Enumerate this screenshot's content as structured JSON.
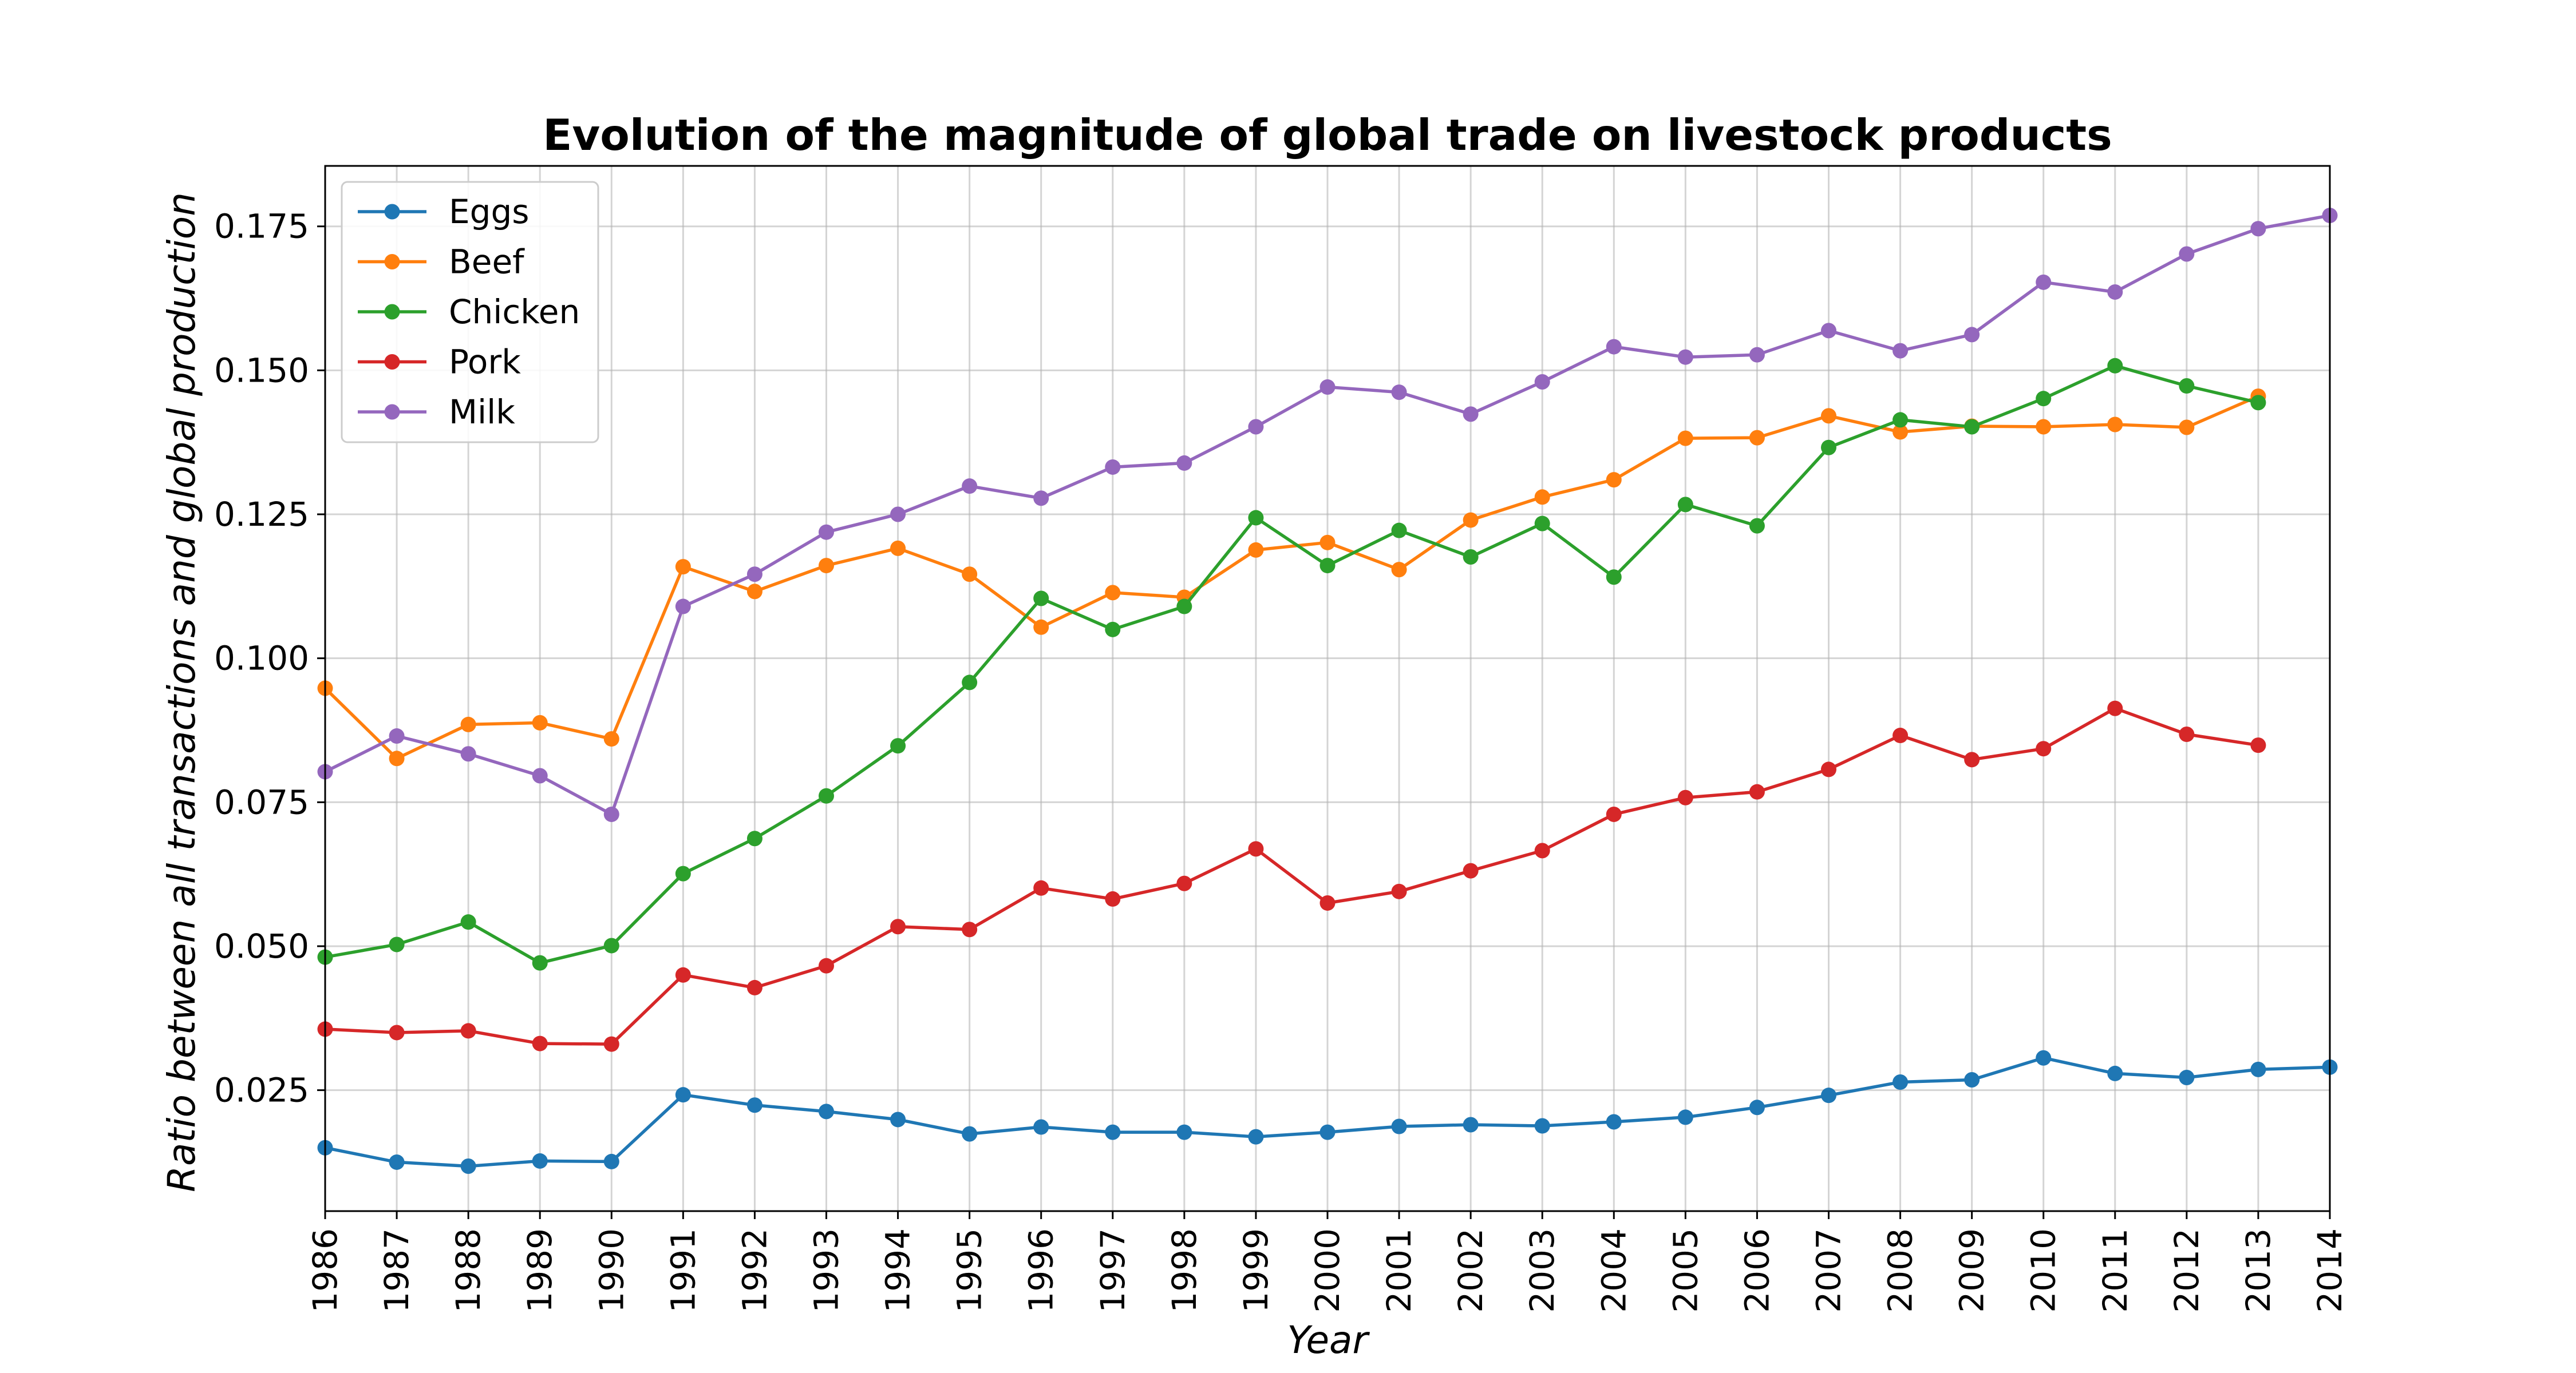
{
  "chart_data": {
    "type": "line",
    "title": "Evolution of the magnitude of global trade on livestock products",
    "xlabel": "Year",
    "ylabel": "Ratio between all transactions and global production",
    "xlim": [
      1986,
      2014
    ],
    "ylim": [
      0.004,
      0.1855
    ],
    "x_ticks": [
      "1986",
      "1987",
      "1988",
      "1989",
      "1990",
      "1991",
      "1992",
      "1993",
      "1994",
      "1995",
      "1996",
      "1997",
      "1998",
      "1999",
      "2000",
      "2001",
      "2002",
      "2003",
      "2004",
      "2005",
      "2006",
      "2007",
      "2008",
      "2009",
      "2010",
      "2011",
      "2012",
      "2013",
      "2014"
    ],
    "y_ticks": [
      "0.025",
      "0.050",
      "0.075",
      "0.100",
      "0.125",
      "0.150",
      "0.175"
    ],
    "y_tick_values": [
      0.025,
      0.05,
      0.075,
      0.1,
      0.125,
      0.15,
      0.175
    ],
    "grid": true,
    "legend_position": "upper-left",
    "series": [
      {
        "name": "Eggs",
        "color": "#1f77b4",
        "x": [
          1986,
          1987,
          1988,
          1989,
          1990,
          1991,
          1992,
          1993,
          1994,
          1995,
          1996,
          1997,
          1998,
          1999,
          2000,
          2001,
          2002,
          2003,
          2004,
          2005,
          2006,
          2007,
          2008,
          2009,
          2010,
          2011,
          2012,
          2013,
          2014
        ],
        "values": [
          0.015,
          0.0125,
          0.0118,
          0.0127,
          0.0126,
          0.0242,
          0.0224,
          0.0213,
          0.0199,
          0.0174,
          0.0186,
          0.0177,
          0.0177,
          0.0169,
          0.0177,
          0.0187,
          0.019,
          0.0188,
          0.0195,
          0.0203,
          0.022,
          0.0241,
          0.0264,
          0.0268,
          0.0306,
          0.0279,
          0.0272,
          0.0286,
          0.029
        ]
      },
      {
        "name": "Beef",
        "color": "#ff7f0e",
        "x": [
          1986,
          1987,
          1988,
          1989,
          1990,
          1991,
          1992,
          1993,
          1994,
          1995,
          1996,
          1997,
          1998,
          1999,
          2000,
          2001,
          2002,
          2003,
          2004,
          2005,
          2006,
          2007,
          2008,
          2009,
          2010,
          2011,
          2012,
          2013
        ],
        "values": [
          0.0948,
          0.0826,
          0.0885,
          0.0888,
          0.086,
          0.1159,
          0.1116,
          0.1161,
          0.1191,
          0.1146,
          0.1054,
          0.1114,
          0.1106,
          0.1188,
          0.1201,
          0.1154,
          0.124,
          0.128,
          0.131,
          0.1382,
          0.1383,
          0.1421,
          0.1393,
          0.1403,
          0.1402,
          0.1406,
          0.1401,
          0.1455
        ]
      },
      {
        "name": "Chicken",
        "color": "#2ca02c",
        "x": [
          1986,
          1987,
          1988,
          1989,
          1990,
          1991,
          1992,
          1993,
          1994,
          1995,
          1996,
          1997,
          1998,
          1999,
          2000,
          2001,
          2002,
          2003,
          2004,
          2005,
          2006,
          2007,
          2008,
          2009,
          2010,
          2011,
          2012,
          2013
        ],
        "values": [
          0.0481,
          0.0503,
          0.0542,
          0.0471,
          0.0501,
          0.0626,
          0.0687,
          0.0761,
          0.0848,
          0.0958,
          0.1104,
          0.105,
          0.109,
          0.1244,
          0.1161,
          0.1222,
          0.1176,
          0.1234,
          0.1141,
          0.1267,
          0.123,
          0.1366,
          0.1414,
          0.1402,
          0.1451,
          0.1508,
          0.1473,
          0.1444
        ]
      },
      {
        "name": "Pork",
        "color": "#d62728",
        "x": [
          1986,
          1987,
          1988,
          1989,
          1990,
          1991,
          1992,
          1993,
          1994,
          1995,
          1996,
          1997,
          1998,
          1999,
          2000,
          2001,
          2002,
          2003,
          2004,
          2005,
          2006,
          2007,
          2008,
          2009,
          2010,
          2011,
          2012,
          2013
        ],
        "values": [
          0.0356,
          0.035,
          0.0353,
          0.0331,
          0.033,
          0.045,
          0.0428,
          0.0466,
          0.0534,
          0.0529,
          0.0601,
          0.0582,
          0.0609,
          0.0669,
          0.0575,
          0.0595,
          0.0631,
          0.0666,
          0.0729,
          0.0758,
          0.0768,
          0.0807,
          0.0866,
          0.0824,
          0.0843,
          0.0913,
          0.0868,
          0.0849
        ]
      },
      {
        "name": "Milk",
        "color": "#9467bd",
        "x": [
          1986,
          1987,
          1988,
          1989,
          1990,
          1991,
          1992,
          1993,
          1994,
          1995,
          1996,
          1997,
          1998,
          1999,
          2000,
          2001,
          2002,
          2003,
          2004,
          2005,
          2006,
          2007,
          2008,
          2009,
          2010,
          2011,
          2012,
          2013,
          2014
        ],
        "values": [
          0.0803,
          0.0865,
          0.0834,
          0.0796,
          0.0729,
          0.109,
          0.1146,
          0.1219,
          0.125,
          0.1299,
          0.1278,
          0.1332,
          0.1339,
          0.1402,
          0.1471,
          0.1462,
          0.1424,
          0.148,
          0.1541,
          0.1523,
          0.1527,
          0.1569,
          0.1534,
          0.1562,
          0.1653,
          0.1636,
          0.1702,
          0.1746,
          0.1769
        ]
      }
    ]
  }
}
